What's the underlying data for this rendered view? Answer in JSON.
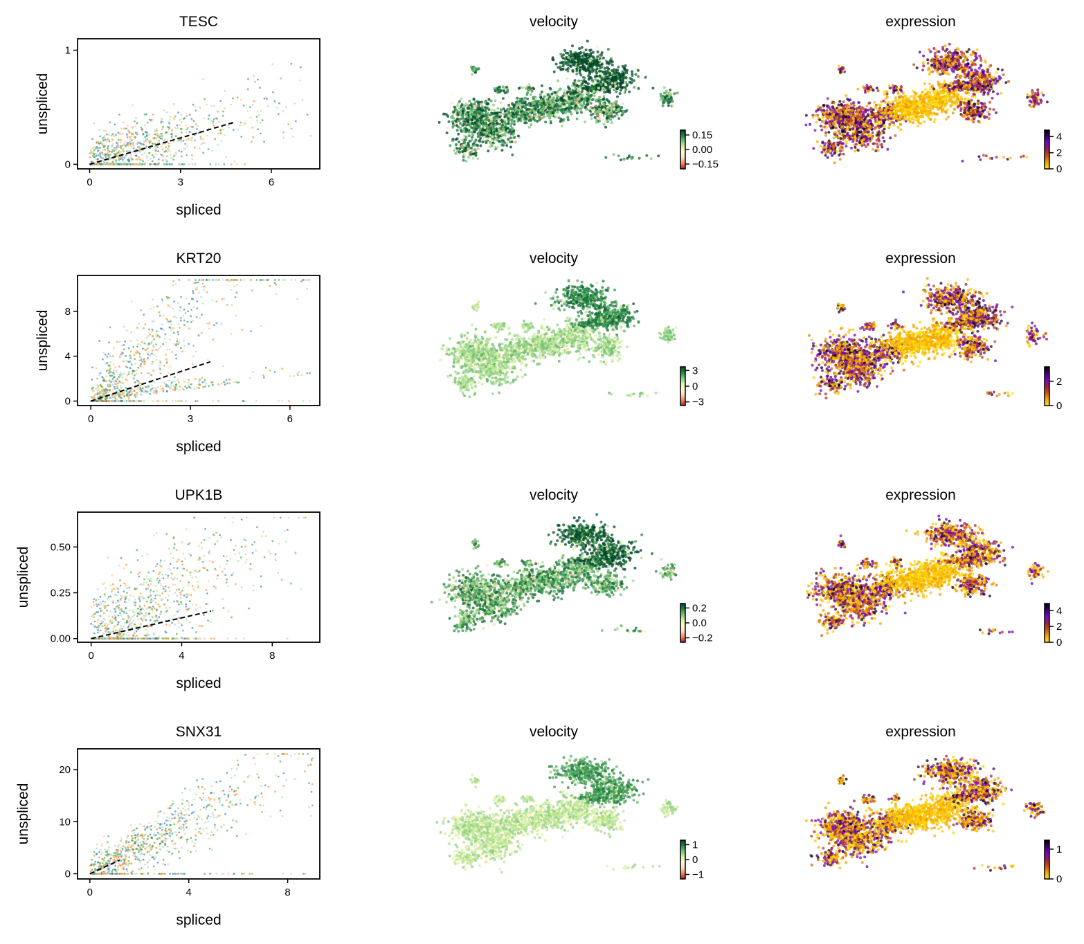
{
  "figure": {
    "rows": 4,
    "columns": [
      "phase-portrait",
      "velocity-embedding",
      "expression-embedding"
    ]
  },
  "palette": {
    "clusters": [
      "#1f77b4",
      "#aec7e8",
      "#ff7f0e",
      "#ffbb78",
      "#98df8a",
      "#2ca02c"
    ],
    "velocity_cmap": [
      "#b2182b",
      "#ef8a62",
      "#fddbc7",
      "#ffffcc",
      "#d9f0a3",
      "#78c679",
      "#238443",
      "#004529"
    ],
    "expression_cmap": [
      "#ffe600",
      "#f5a300",
      "#c8500a",
      "#9a1f4a",
      "#7a00d6",
      "#3b0070",
      "#000000"
    ],
    "fit_line": "#000000"
  },
  "chart_data": [
    {
      "type": "scatter",
      "gene": "TESC",
      "title": "TESC",
      "xlabel": "spliced",
      "ylabel": "unspliced",
      "xlim": [
        -0.4,
        7.6
      ],
      "ylim": [
        -0.04,
        1.1
      ],
      "xticks": [
        0,
        3,
        6
      ],
      "xtick_labels": [
        "0",
        "3",
        "6"
      ],
      "yticks": [
        0,
        1
      ],
      "ytick_labels": [
        "0",
        "1"
      ],
      "fit_line": {
        "x": [
          0,
          4.8
        ],
        "y": [
          0,
          0.37
        ],
        "style": "dashed"
      },
      "cloud": {
        "slope": 0.08,
        "spread_x": 6.0,
        "spread_y": 0.12,
        "max_x": 7.3,
        "max_y": 1.03
      }
    },
    {
      "type": "scatter",
      "gene": "KRT20",
      "title": "KRT20",
      "xlabel": "spliced",
      "ylabel": "unspliced",
      "xlim": [
        -0.4,
        6.9
      ],
      "ylim": [
        -0.4,
        11.2
      ],
      "xticks": [
        0,
        3,
        6
      ],
      "xtick_labels": [
        "0",
        "3",
        "6"
      ],
      "yticks": [
        0,
        4,
        8
      ],
      "ytick_labels": [
        "0",
        "4",
        "8"
      ],
      "fit_line": {
        "x": [
          0,
          3.6
        ],
        "y": [
          0,
          3.5
        ],
        "style": "dashed"
      },
      "cloud": {
        "slope": 2.5,
        "spread_x": 5.8,
        "spread_y": 1.6,
        "max_x": 6.6,
        "max_y": 10.8,
        "lower_branch": true
      }
    },
    {
      "type": "scatter",
      "gene": "UPK1B",
      "title": "UPK1B",
      "xlabel": "spliced",
      "ylabel": "unspliced",
      "xlim": [
        -0.6,
        10.1
      ],
      "ylim": [
        -0.02,
        0.69
      ],
      "xticks": [
        0,
        4,
        8
      ],
      "xtick_labels": [
        "0",
        "4",
        "8"
      ],
      "yticks": [
        0.0,
        0.25,
        0.5
      ],
      "ytick_labels": [
        "0.00",
        "0.25",
        "0.50"
      ],
      "fit_line": {
        "x": [
          0,
          5.3
        ],
        "y": [
          0,
          0.15
        ],
        "style": "dashed"
      },
      "cloud": {
        "slope": 0.06,
        "spread_x": 8.5,
        "spread_y": 0.14,
        "max_x": 9.6,
        "max_y": 0.66
      }
    },
    {
      "type": "scatter",
      "gene": "SNX31",
      "title": "SNX31",
      "xlabel": "spliced",
      "ylabel": "unspliced",
      "xlim": [
        -0.5,
        9.3
      ],
      "ylim": [
        -1.0,
        24.0
      ],
      "xticks": [
        0,
        4,
        8
      ],
      "xtick_labels": [
        "0",
        "4",
        "8"
      ],
      "yticks": [
        0,
        10,
        20
      ],
      "ytick_labels": [
        "0",
        "10",
        "20"
      ],
      "fit_line": {
        "x": [
          0,
          1.2
        ],
        "y": [
          0,
          2.6
        ],
        "style": "dashed"
      },
      "cloud": {
        "slope": 2.4,
        "spread_x": 8.8,
        "spread_y": 1.8,
        "max_x": 9.0,
        "max_y": 23.0
      }
    }
  ],
  "embeddings": [
    {
      "velocity": {
        "title": "velocity",
        "colorbar_ticks": [
          0.15,
          0.0,
          -0.15
        ],
        "colorbar_labels": [
          "0.15",
          "0.00",
          "−0.15"
        ],
        "range": [
          -0.2,
          0.2
        ],
        "bias": 0.45
      },
      "expression": {
        "title": "expression",
        "colorbar_ticks": [
          4,
          2,
          0
        ],
        "colorbar_labels": [
          "4",
          "2",
          "0"
        ],
        "range": [
          0,
          4.8
        ],
        "bias": 0.35
      }
    },
    {
      "velocity": {
        "title": "velocity",
        "colorbar_ticks": [
          3,
          0,
          -3
        ],
        "colorbar_labels": [
          "3",
          "0",
          "−3"
        ],
        "range": [
          -3.7,
          3.7
        ],
        "bias": 0.2
      },
      "expression": {
        "title": "expression",
        "colorbar_ticks": [
          2,
          0
        ],
        "colorbar_labels": [
          "2",
          "0"
        ],
        "range": [
          0,
          3.2
        ],
        "bias": 0.4
      }
    },
    {
      "velocity": {
        "title": "velocity",
        "colorbar_ticks": [
          0.2,
          0.0,
          -0.2
        ],
        "colorbar_labels": [
          "0.2",
          "0.0",
          "−0.2"
        ],
        "range": [
          -0.26,
          0.26
        ],
        "bias": 0.35
      },
      "expression": {
        "title": "expression",
        "colorbar_ticks": [
          4,
          2,
          0
        ],
        "colorbar_labels": [
          "4",
          "2",
          "0"
        ],
        "range": [
          0,
          4.9
        ],
        "bias": 0.5
      }
    },
    {
      "velocity": {
        "title": "velocity",
        "colorbar_ticks": [
          1,
          0,
          -1
        ],
        "colorbar_labels": [
          "1",
          "0",
          "−1"
        ],
        "range": [
          -1.3,
          1.3
        ],
        "bias": 0.15
      },
      "expression": {
        "title": "expression",
        "colorbar_ticks": [
          1,
          0
        ],
        "colorbar_labels": [
          "1",
          "0"
        ],
        "range": [
          0,
          1.3
        ],
        "bias": 0.55
      }
    }
  ]
}
